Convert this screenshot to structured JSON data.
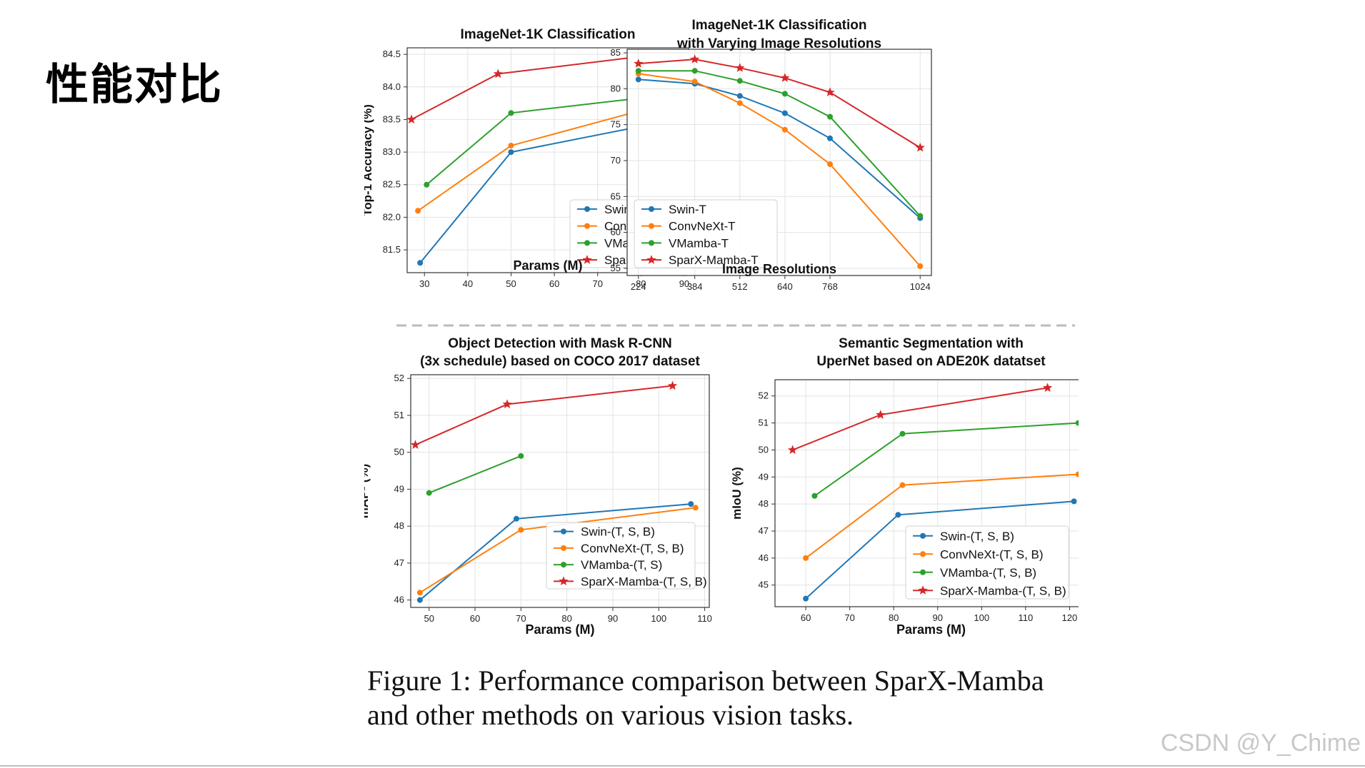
{
  "slide": {
    "title": "性能对比",
    "caption_line1": "Figure 1: Performance comparison between SparX-Mamba",
    "caption_line2": "and other methods on various vision tasks.",
    "watermark": "CSDN @Y_Chime"
  },
  "colors": {
    "swin": "#1f77b4",
    "convnext": "#ff7f0e",
    "vmamba": "#2ca02c",
    "sparx": "#d62728"
  },
  "chart_data": [
    {
      "type": "line",
      "title": [
        "ImageNet-1K Classification"
      ],
      "xlabel": "Params (M)",
      "ylabel": "Top-1 Accuracy (%)",
      "xlim": [
        26,
        91
      ],
      "ylim": [
        81.15,
        84.6
      ],
      "xticks": [
        30,
        40,
        50,
        60,
        70,
        80,
        90
      ],
      "yticks": [
        81.5,
        82.0,
        82.5,
        83.0,
        83.5,
        84.0,
        84.5
      ],
      "ytick_labels": [
        "81.5",
        "82.0",
        "82.5",
        "83.0",
        "83.5",
        "84.0",
        "84.5"
      ],
      "legend": "lower-right",
      "series": [
        {
          "name": "Swin-(T, S, B)",
          "color": "swin",
          "marker": "dot",
          "x": [
            29,
            50,
            88
          ],
          "y": [
            81.3,
            83.0,
            83.5
          ]
        },
        {
          "name": "ConvNeXt-(T, S, B)",
          "color": "convnext",
          "marker": "dot",
          "x": [
            28.5,
            50,
            89
          ],
          "y": [
            82.1,
            83.1,
            83.8
          ]
        },
        {
          "name": "VMamba-(T, S, B)",
          "color": "vmamba",
          "marker": "dot",
          "x": [
            30.5,
            50,
            89
          ],
          "y": [
            82.5,
            83.6,
            83.9
          ]
        },
        {
          "name": "SparX-Mamba-(T, S, B)",
          "color": "sparx",
          "marker": "star",
          "x": [
            27,
            47,
            84
          ],
          "y": [
            83.5,
            84.2,
            84.5
          ]
        }
      ]
    },
    {
      "type": "line",
      "title": [
        "ImageNet-1K Classification",
        "with Varying Image Resolutions"
      ],
      "xlabel": "Image Resolutions",
      "ylabel": "",
      "xlim": [
        192,
        1056
      ],
      "ylim": [
        54,
        85.5
      ],
      "xticks": [
        224,
        384,
        512,
        640,
        768,
        1024
      ],
      "yticks": [
        55,
        60,
        65,
        70,
        75,
        80,
        85
      ],
      "ytick_labels": [
        "55",
        "60",
        "65",
        "70",
        "75",
        "80",
        "85"
      ],
      "legend": "lower-left",
      "series": [
        {
          "name": "Swin-T",
          "color": "swin",
          "marker": "dot",
          "x": [
            224,
            384,
            512,
            640,
            768,
            1024
          ],
          "y": [
            81.3,
            80.7,
            79.0,
            76.6,
            73.1,
            62.0
          ]
        },
        {
          "name": "ConvNeXt-T",
          "color": "convnext",
          "marker": "dot",
          "x": [
            224,
            384,
            512,
            640,
            768,
            1024
          ],
          "y": [
            82.1,
            81.0,
            78.0,
            74.3,
            69.5,
            55.3
          ]
        },
        {
          "name": "VMamba-T",
          "color": "vmamba",
          "marker": "dot",
          "x": [
            224,
            384,
            512,
            640,
            768,
            1024
          ],
          "y": [
            82.5,
            82.5,
            81.1,
            79.3,
            76.1,
            62.3
          ]
        },
        {
          "name": "SparX-Mamba-T",
          "color": "sparx",
          "marker": "star",
          "x": [
            224,
            384,
            512,
            640,
            768,
            1024
          ],
          "y": [
            83.5,
            84.1,
            82.9,
            81.5,
            79.5,
            71.8
          ]
        }
      ]
    },
    {
      "type": "line",
      "title": [
        "Object Detection with Mask R-CNN",
        "(3x schedule) based on COCO 2017 dataset"
      ],
      "xlabel": "Params (M)",
      "ylabel": "mAPᵇ (%)",
      "xlim": [
        46,
        111
      ],
      "ylim": [
        45.8,
        52.1
      ],
      "xticks": [
        50,
        60,
        70,
        80,
        90,
        100,
        110
      ],
      "yticks": [
        46,
        47,
        48,
        49,
        50,
        51,
        52
      ],
      "ytick_labels": [
        "46",
        "47",
        "48",
        "49",
        "50",
        "51",
        "52"
      ],
      "legend": "lower-right",
      "series": [
        {
          "name": "Swin-(T, S, B)",
          "color": "swin",
          "marker": "dot",
          "x": [
            48,
            69,
            107
          ],
          "y": [
            46.0,
            48.2,
            48.6
          ]
        },
        {
          "name": "ConvNeXt-(T, S, B)",
          "color": "convnext",
          "marker": "dot",
          "x": [
            48,
            70,
            108
          ],
          "y": [
            46.2,
            47.9,
            48.5
          ]
        },
        {
          "name": "VMamba-(T, S)",
          "color": "vmamba",
          "marker": "dot",
          "x": [
            50,
            70
          ],
          "y": [
            48.9,
            49.9
          ]
        },
        {
          "name": "SparX-Mamba-(T, S, B)",
          "color": "sparx",
          "marker": "star",
          "x": [
            47,
            67,
            103
          ],
          "y": [
            50.2,
            51.3,
            51.8
          ]
        }
      ]
    },
    {
      "type": "line",
      "title": [
        "Semantic Segmentation with",
        "UperNet based on ADE20K datatset"
      ],
      "xlabel": "Params (M)",
      "ylabel": "mIoU (%)",
      "xlim": [
        53,
        124
      ],
      "ylim": [
        44.2,
        52.6
      ],
      "xticks": [
        60,
        70,
        80,
        90,
        100,
        110,
        120
      ],
      "yticks": [
        45,
        46,
        47,
        48,
        49,
        50,
        51,
        52
      ],
      "ytick_labels": [
        "45",
        "46",
        "47",
        "48",
        "49",
        "50",
        "51",
        "52"
      ],
      "legend": "lower-right",
      "series": [
        {
          "name": "Swin-(T, S, B)",
          "color": "swin",
          "marker": "dot",
          "x": [
            60,
            81,
            121
          ],
          "y": [
            44.5,
            47.6,
            48.1
          ]
        },
        {
          "name": "ConvNeXt-(T, S, B)",
          "color": "convnext",
          "marker": "dot",
          "x": [
            60,
            82,
            122
          ],
          "y": [
            46.0,
            48.7,
            49.1
          ]
        },
        {
          "name": "VMamba-(T, S, B)",
          "color": "vmamba",
          "marker": "dot",
          "x": [
            62,
            82,
            122
          ],
          "y": [
            48.3,
            50.6,
            51.0
          ]
        },
        {
          "name": "SparX-Mamba-(T, S, B)",
          "color": "sparx",
          "marker": "star",
          "x": [
            57,
            77,
            115
          ],
          "y": [
            50.0,
            51.3,
            52.3
          ]
        }
      ]
    }
  ]
}
